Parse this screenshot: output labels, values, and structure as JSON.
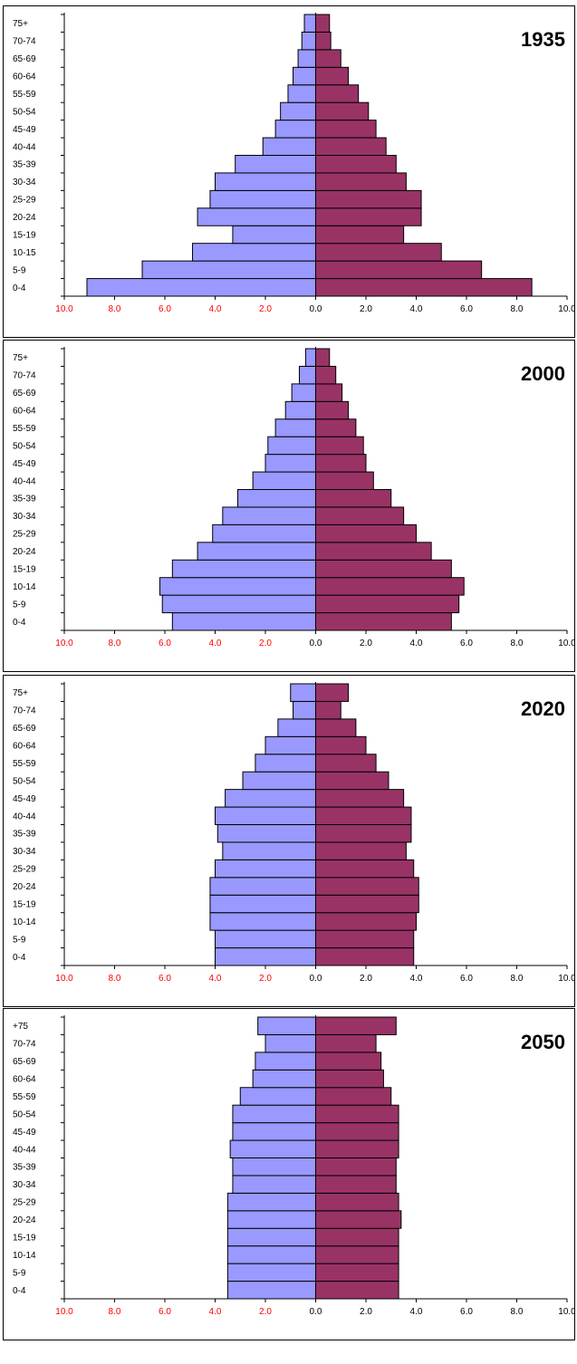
{
  "colors": {
    "left_bar": "#9999ff",
    "right_bar": "#993366",
    "outline": "#000000",
    "x_tick_left": "#ff0000",
    "x_tick_right": "#000000"
  },
  "chart_data": [
    {
      "type": "bar",
      "orientation": "horizontal-pyramid",
      "title": "1935",
      "categories": [
        "0-4",
        "5-9",
        "10-15",
        "15-19",
        "20-24",
        "25-29",
        "30-34",
        "35-39",
        "40-44",
        "45-49",
        "50-54",
        "55-59",
        "60-64",
        "65-69",
        "70-74",
        "75+"
      ],
      "series": [
        {
          "values": [
            9.1,
            6.9,
            4.9,
            3.3,
            4.7,
            4.2,
            4.0,
            3.2,
            2.1,
            1.6,
            1.4,
            1.1,
            0.9,
            0.7,
            0.55,
            0.45
          ]
        },
        {
          "values": [
            8.6,
            6.6,
            5.0,
            3.5,
            4.2,
            4.2,
            3.6,
            3.2,
            2.8,
            2.4,
            2.1,
            1.7,
            1.3,
            1.0,
            0.6,
            0.55
          ]
        }
      ],
      "xlim": [
        -10,
        10
      ],
      "x_tick_labels": [
        "10.0",
        "8.0",
        "6.0",
        "4.0",
        "2.0",
        "0.0",
        "2.0",
        "4.0",
        "6.0",
        "8.0",
        "10.0"
      ],
      "grid": false,
      "legend": "none"
    },
    {
      "type": "bar",
      "orientation": "horizontal-pyramid",
      "title": "2000",
      "categories": [
        "0-4",
        "5-9",
        "10-14",
        "15-19",
        "20-24",
        "25-29",
        "30-34",
        "35-39",
        "40-44",
        "45-49",
        "50-54",
        "55-59",
        "60-64",
        "65-69",
        "70-74",
        "75+"
      ],
      "series": [
        {
          "values": [
            5.7,
            6.1,
            6.2,
            5.7,
            4.7,
            4.1,
            3.7,
            3.1,
            2.5,
            2.0,
            1.9,
            1.6,
            1.2,
            0.95,
            0.65,
            0.4
          ]
        },
        {
          "values": [
            5.4,
            5.7,
            5.9,
            5.4,
            4.6,
            4.0,
            3.5,
            3.0,
            2.3,
            2.0,
            1.9,
            1.6,
            1.3,
            1.05,
            0.8,
            0.55
          ]
        }
      ],
      "xlim": [
        -10,
        10
      ],
      "x_tick_labels": [
        "10.0",
        "8.0",
        "6.0",
        "4.0",
        "2.0",
        "0.0",
        "2.0",
        "4.0",
        "6.0",
        "8.0",
        "10.0"
      ],
      "grid": false,
      "legend": "none"
    },
    {
      "type": "bar",
      "orientation": "horizontal-pyramid",
      "title": "2020",
      "categories": [
        "0-4",
        "5-9",
        "10-14",
        "15-19",
        "20-24",
        "25-29",
        "30-34",
        "35-39",
        "40-44",
        "45-49",
        "50-54",
        "55-59",
        "60-64",
        "65-69",
        "70-74",
        "75+"
      ],
      "series": [
        {
          "values": [
            4.0,
            4.0,
            4.2,
            4.2,
            4.2,
            4.0,
            3.7,
            3.9,
            4.0,
            3.6,
            2.9,
            2.4,
            2.0,
            1.5,
            0.9,
            1.0
          ]
        },
        {
          "values": [
            3.9,
            3.9,
            4.0,
            4.1,
            4.1,
            3.9,
            3.6,
            3.8,
            3.8,
            3.5,
            2.9,
            2.4,
            2.0,
            1.6,
            1.0,
            1.3
          ]
        }
      ],
      "xlim": [
        -10,
        10
      ],
      "x_tick_labels": [
        "10.0",
        "8.0",
        "6.0",
        "4.0",
        "2.0",
        "0.0",
        "2.0",
        "4.0",
        "6.0",
        "8.0",
        "10.0"
      ],
      "grid": false,
      "legend": "none"
    },
    {
      "type": "bar",
      "orientation": "horizontal-pyramid",
      "title": "2050",
      "categories": [
        "0-4",
        "5-9",
        "10-14",
        "15-19",
        "20-24",
        "25-29",
        "30-34",
        "35-39",
        "40-44",
        "45-49",
        "50-54",
        "55-59",
        "60-64",
        "65-69",
        "70-74",
        "+75"
      ],
      "series": [
        {
          "values": [
            3.5,
            3.5,
            3.5,
            3.5,
            3.5,
            3.5,
            3.3,
            3.3,
            3.4,
            3.3,
            3.3,
            3.0,
            2.5,
            2.4,
            2.0,
            2.3
          ]
        },
        {
          "values": [
            3.3,
            3.3,
            3.3,
            3.3,
            3.4,
            3.3,
            3.2,
            3.2,
            3.3,
            3.3,
            3.3,
            3.0,
            2.7,
            2.6,
            2.4,
            3.2
          ]
        }
      ],
      "xlim": [
        -10,
        10
      ],
      "x_tick_labels": [
        "10.0",
        "8.0",
        "6.0",
        "4.0",
        "2.0",
        "0.0",
        "2.0",
        "4.0",
        "6.0",
        "8.0",
        "10.0"
      ],
      "grid": false,
      "legend": "none"
    }
  ]
}
